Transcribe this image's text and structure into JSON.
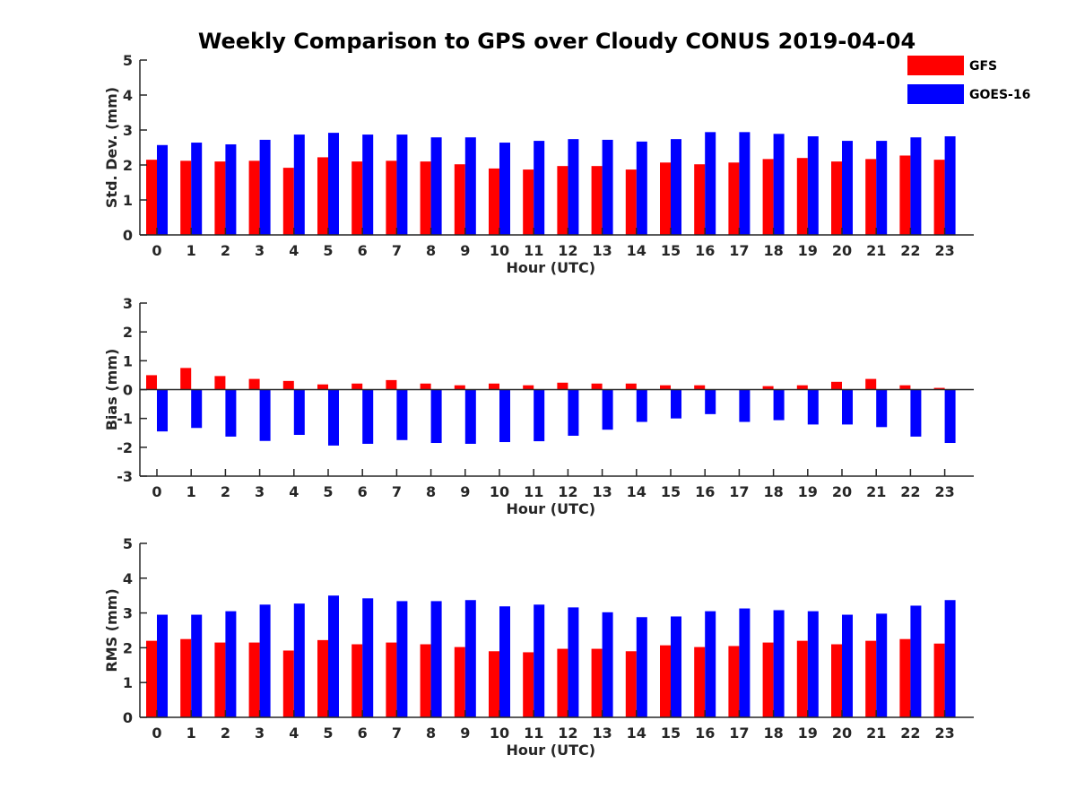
{
  "title": "Weekly Comparison to GPS over Cloudy CONUS 2019-04-04",
  "legend": {
    "placement": "top-right",
    "items": [
      {
        "name": "GFS",
        "color": "#ff0000"
      },
      {
        "name": "GOES-16",
        "color": "#0000ff"
      }
    ]
  },
  "chart_data": [
    {
      "type": "bar",
      "xlabel": "Hour (UTC)",
      "ylabel": "Std. Dev. (mm)",
      "ylim": [
        0,
        5
      ],
      "yticks": [
        0,
        1,
        2,
        3,
        4,
        5
      ],
      "categories": [
        "0",
        "1",
        "2",
        "3",
        "4",
        "5",
        "6",
        "7",
        "8",
        "9",
        "10",
        "11",
        "12",
        "13",
        "14",
        "15",
        "16",
        "17",
        "18",
        "19",
        "20",
        "21",
        "22",
        "23"
      ],
      "series": [
        {
          "name": "GFS",
          "color": "#ff0000",
          "values": [
            2.15,
            2.12,
            2.1,
            2.12,
            1.92,
            2.22,
            2.1,
            2.12,
            2.1,
            2.02,
            1.9,
            1.87,
            1.97,
            1.97,
            1.87,
            2.07,
            2.02,
            2.07,
            2.17,
            2.2,
            2.1,
            2.17,
            2.27,
            2.15
          ]
        },
        {
          "name": "GOES-16",
          "color": "#0000ff",
          "values": [
            2.57,
            2.64,
            2.59,
            2.72,
            2.87,
            2.92,
            2.87,
            2.87,
            2.79,
            2.79,
            2.64,
            2.69,
            2.74,
            2.72,
            2.67,
            2.74,
            2.94,
            2.94,
            2.89,
            2.82,
            2.69,
            2.69,
            2.79,
            2.82
          ]
        }
      ]
    },
    {
      "type": "bar",
      "xlabel": "Hour (UTC)",
      "ylabel": "Bias (mm)",
      "ylim": [
        -3,
        3
      ],
      "yticks": [
        -3,
        -2,
        -1,
        0,
        1,
        2,
        3
      ],
      "categories": [
        "0",
        "1",
        "2",
        "3",
        "4",
        "5",
        "6",
        "7",
        "8",
        "9",
        "10",
        "11",
        "12",
        "13",
        "14",
        "15",
        "16",
        "17",
        "18",
        "19",
        "20",
        "21",
        "22",
        "23"
      ],
      "series": [
        {
          "name": "GFS",
          "color": "#ff0000",
          "values": [
            0.5,
            0.75,
            0.47,
            0.37,
            0.3,
            0.18,
            0.21,
            0.33,
            0.21,
            0.15,
            0.21,
            0.15,
            0.24,
            0.21,
            0.21,
            0.15,
            0.15,
            0.0,
            0.12,
            0.15,
            0.27,
            0.37,
            0.15,
            0.06
          ]
        },
        {
          "name": "GOES-16",
          "color": "#0000ff",
          "values": [
            -1.45,
            -1.33,
            -1.63,
            -1.78,
            -1.57,
            -1.94,
            -1.88,
            -1.75,
            -1.85,
            -1.88,
            -1.82,
            -1.79,
            -1.6,
            -1.39,
            -1.12,
            -1.0,
            -0.85,
            -1.12,
            -1.06,
            -1.21,
            -1.21,
            -1.3,
            -1.63,
            -1.85
          ]
        }
      ]
    },
    {
      "type": "bar",
      "xlabel": "Hour (UTC)",
      "ylabel": "RMS (mm)",
      "ylim": [
        0,
        5
      ],
      "yticks": [
        0,
        1,
        2,
        3,
        4,
        5
      ],
      "categories": [
        "0",
        "1",
        "2",
        "3",
        "4",
        "5",
        "6",
        "7",
        "8",
        "9",
        "10",
        "11",
        "12",
        "13",
        "14",
        "15",
        "16",
        "17",
        "18",
        "19",
        "20",
        "21",
        "22",
        "23"
      ],
      "series": [
        {
          "name": "GFS",
          "color": "#ff0000",
          "values": [
            2.2,
            2.25,
            2.15,
            2.15,
            1.92,
            2.22,
            2.1,
            2.15,
            2.1,
            2.02,
            1.9,
            1.87,
            1.97,
            1.97,
            1.9,
            2.07,
            2.02,
            2.05,
            2.15,
            2.2,
            2.1,
            2.2,
            2.25,
            2.12
          ]
        },
        {
          "name": "GOES-16",
          "color": "#0000ff",
          "values": [
            2.95,
            2.95,
            3.05,
            3.24,
            3.27,
            3.5,
            3.42,
            3.34,
            3.34,
            3.37,
            3.19,
            3.24,
            3.16,
            3.02,
            2.88,
            2.9,
            3.05,
            3.13,
            3.08,
            3.05,
            2.95,
            2.98,
            3.21,
            3.37
          ]
        }
      ]
    }
  ]
}
